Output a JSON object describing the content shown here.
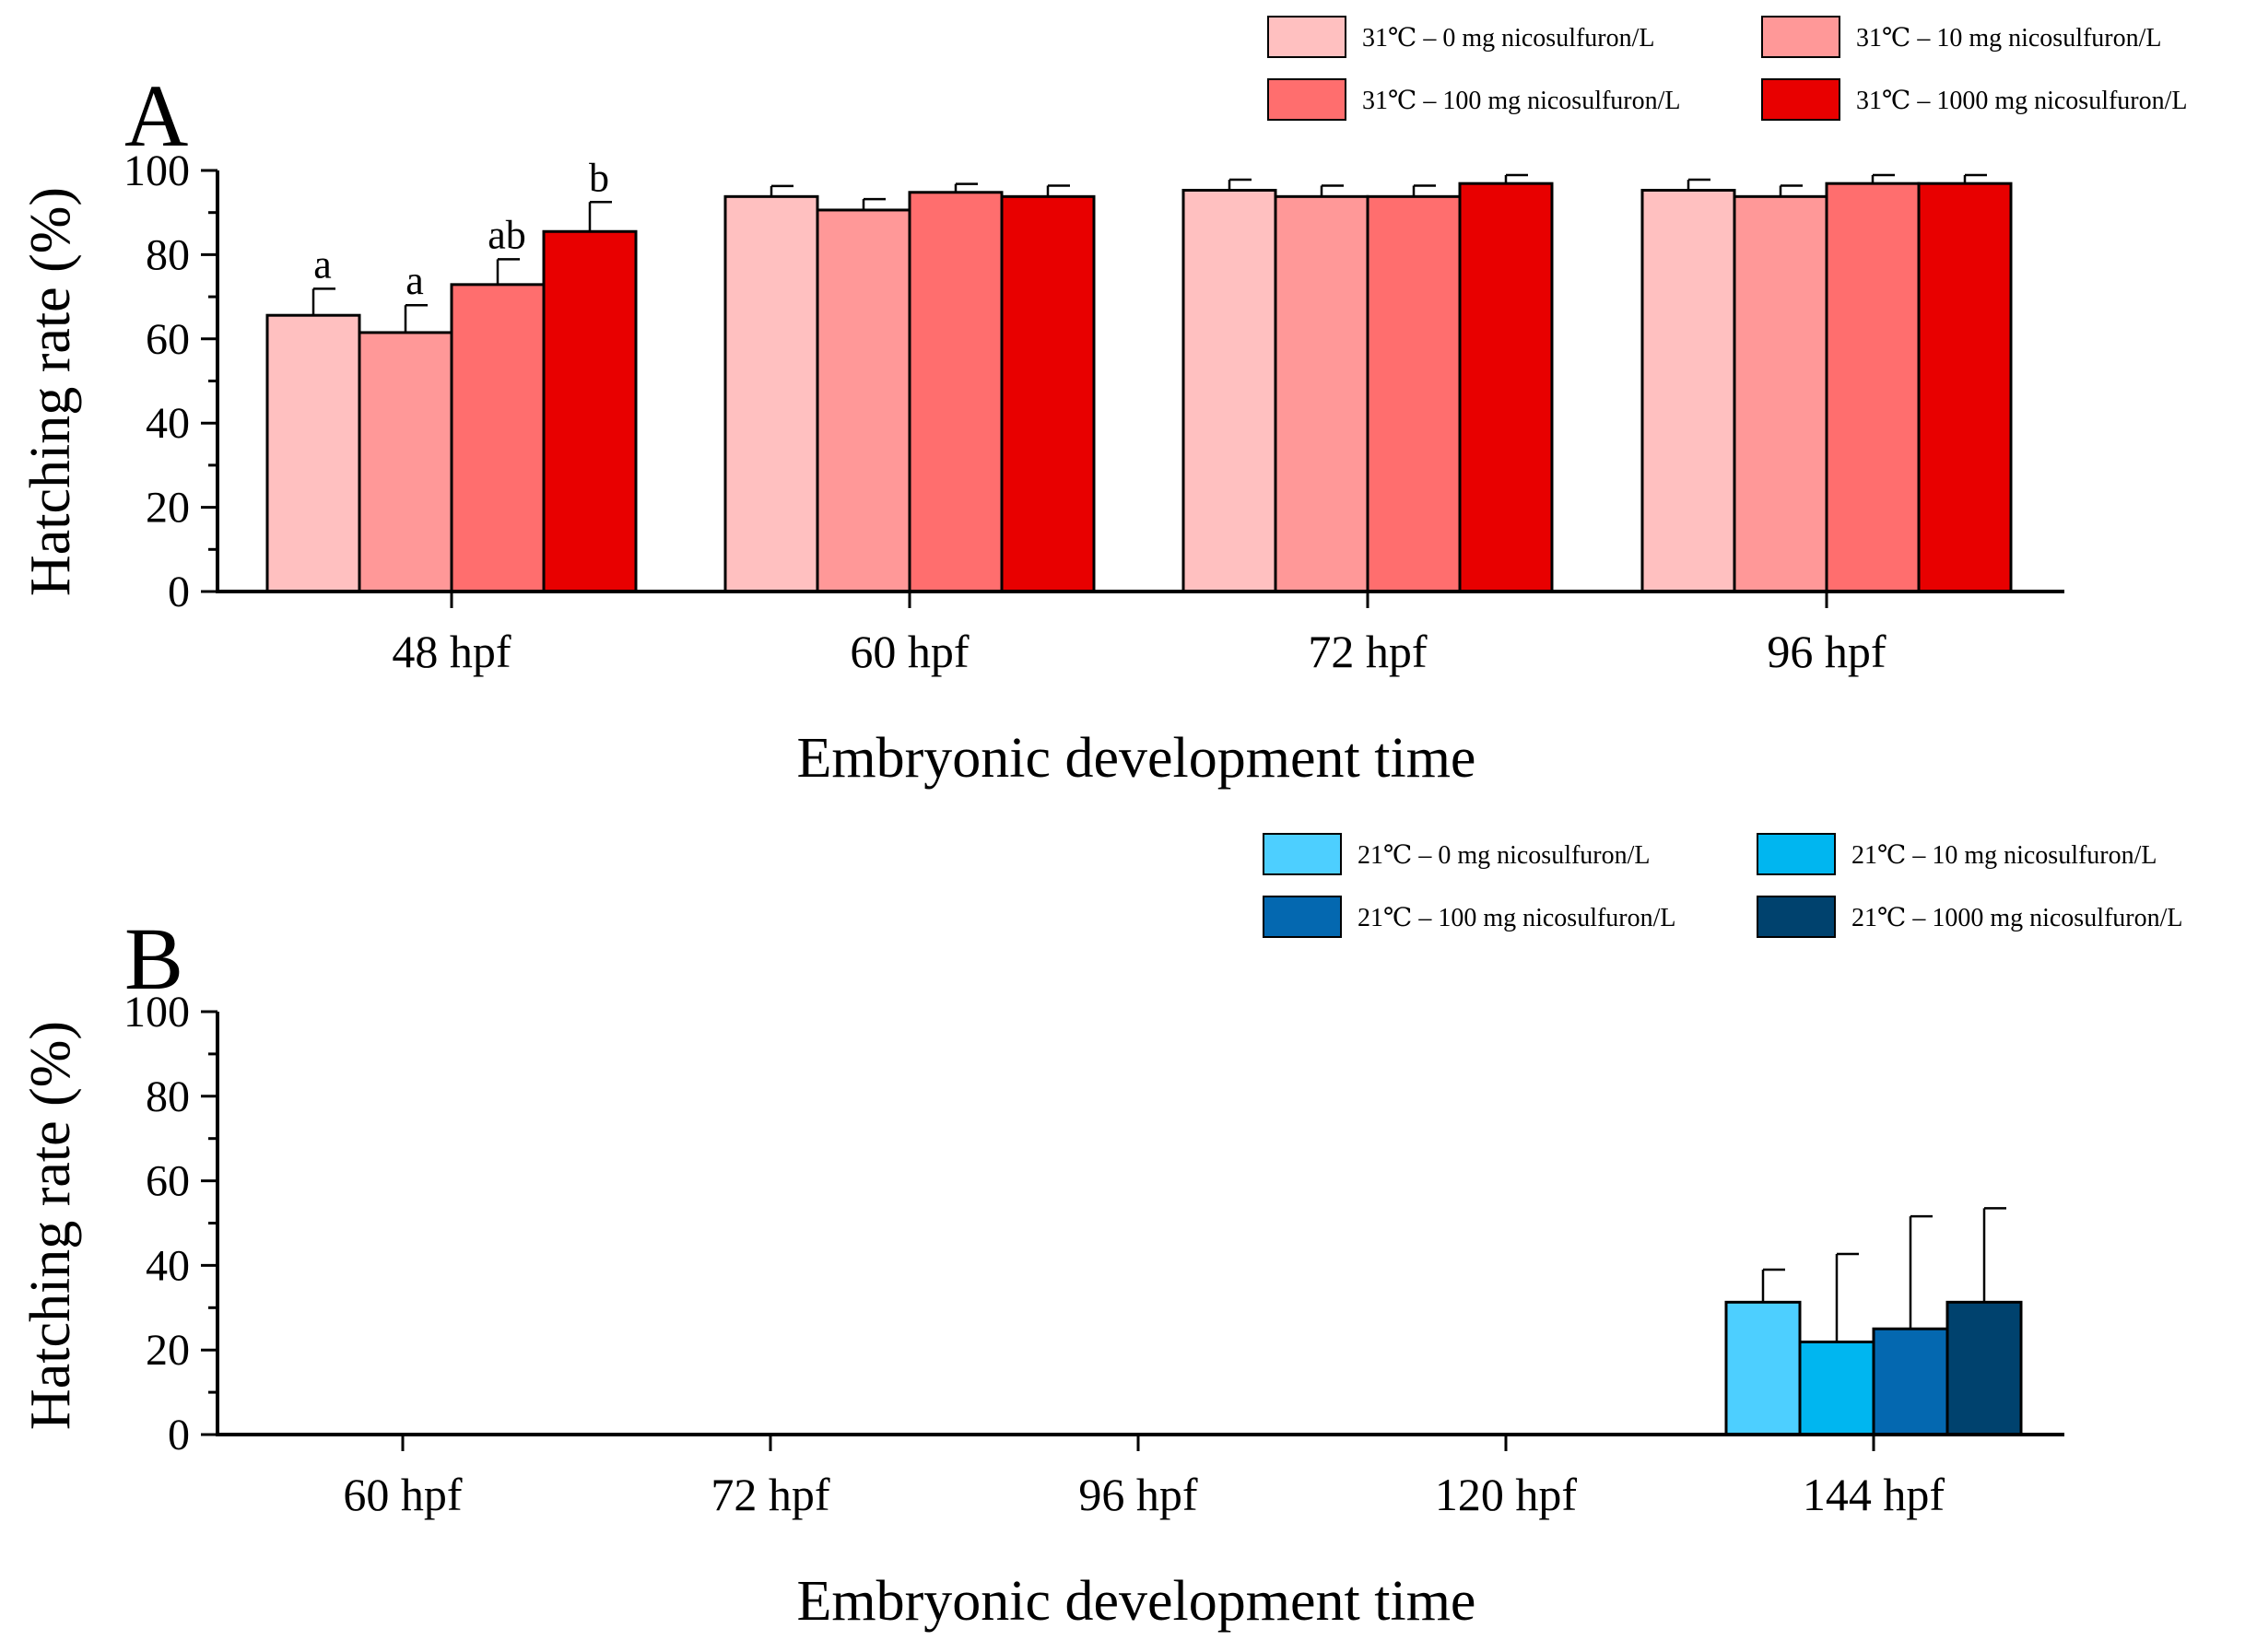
{
  "chart_data": [
    {
      "type": "bar",
      "panel": "A",
      "ylabel": "Hatching rate (%)",
      "xlabel": "Embryonic development time",
      "ylim": [
        0,
        100
      ],
      "yticks": [
        0,
        20,
        40,
        60,
        80,
        100
      ],
      "categories": [
        "48 hpf",
        "60 hpf",
        "72 hpf",
        "96 hpf"
      ],
      "series": [
        {
          "name": "31℃ – 0 mg nicosulfuron/L",
          "color": "#FFC0C0",
          "values": [
            65.6,
            93.8,
            95.3,
            95.3
          ],
          "errors": [
            6.3,
            2.5,
            2.5,
            2.5
          ]
        },
        {
          "name": "31℃ – 10 mg nicosulfuron/L",
          "color": "#FF9898",
          "values": [
            61.5,
            90.6,
            93.8,
            93.8
          ],
          "errors": [
            6.5,
            2.6,
            2.6,
            2.6
          ]
        },
        {
          "name": "31℃ – 100 mg nicosulfuron/L",
          "color": "#FF6E6E",
          "values": [
            72.9,
            94.8,
            93.8,
            96.9
          ],
          "errors": [
            6.0,
            2.0,
            2.6,
            2.0
          ]
        },
        {
          "name": "31℃ – 1000 mg nicosulfuron/L",
          "color": "#E80000",
          "values": [
            85.5,
            93.8,
            96.9,
            96.9
          ],
          "errors": [
            7.0,
            2.6,
            2.0,
            2.0
          ]
        }
      ],
      "significance": [
        [
          "a",
          "a",
          "ab",
          "b"
        ],
        [
          "",
          "",
          "",
          ""
        ],
        [
          "",
          "",
          "",
          ""
        ],
        [
          "",
          "",
          "",
          ""
        ]
      ]
    },
    {
      "type": "bar",
      "panel": "B",
      "ylabel": "Hatching rate (%)",
      "xlabel": "Embryonic development time",
      "ylim": [
        0,
        100
      ],
      "yticks": [
        0,
        20,
        40,
        60,
        80,
        100
      ],
      "categories": [
        "60 hpf",
        "72 hpf",
        "96 hpf",
        "120 hpf",
        "144 hpf"
      ],
      "series": [
        {
          "name": "21℃ – 0 mg nicosulfuron/L",
          "color": "#4DCFFF",
          "values": [
            0,
            0,
            0,
            0,
            31.3
          ],
          "errors": [
            0,
            0,
            0,
            0,
            7.7
          ]
        },
        {
          "name": "21℃ – 10 mg nicosulfuron/L",
          "color": "#00B6F0",
          "values": [
            0,
            0,
            0,
            0,
            21.9
          ],
          "errors": [
            0,
            0,
            0,
            0,
            20.8
          ]
        },
        {
          "name": "21℃ – 100 mg nicosulfuron/L",
          "color": "#0468B0",
          "values": [
            0,
            0,
            0,
            0,
            25.0
          ],
          "errors": [
            0,
            0,
            0,
            0,
            26.6
          ]
        },
        {
          "name": "21℃ – 1000 mg nicosulfuron/L",
          "color": "#00426E",
          "values": [
            0,
            0,
            0,
            0,
            31.3
          ],
          "errors": [
            0,
            0,
            0,
            0,
            22.2
          ]
        }
      ],
      "significance": [
        [
          "",
          "",
          "",
          ""
        ],
        [
          "",
          "",
          "",
          ""
        ],
        [
          "",
          "",
          "",
          ""
        ],
        [
          "",
          "",
          "",
          ""
        ],
        [
          "",
          "",
          "",
          ""
        ]
      ]
    }
  ]
}
